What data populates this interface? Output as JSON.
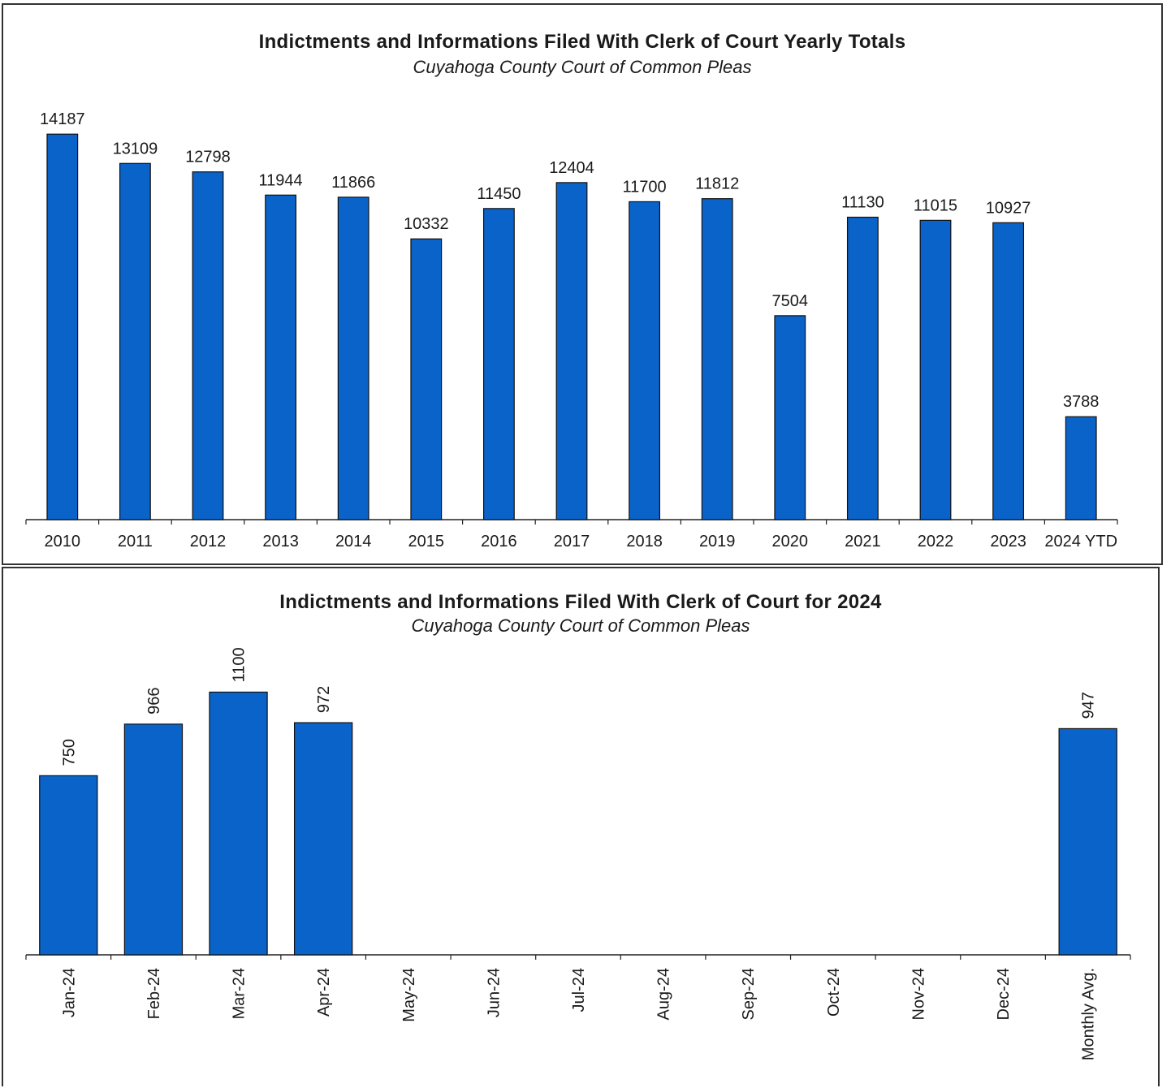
{
  "chart_data": [
    {
      "type": "bar",
      "title": "Indictments and Informations Filed With Clerk of Court Yearly Totals",
      "subtitle": "Cuyahoga County Court of Common Pleas",
      "categories": [
        "2010",
        "2011",
        "2012",
        "2013",
        "2014",
        "2015",
        "2016",
        "2017",
        "2018",
        "2019",
        "2020",
        "2021",
        "2022",
        "2023",
        "2024 YTD"
      ],
      "values": [
        14187,
        13109,
        12798,
        11944,
        11866,
        10332,
        11450,
        12404,
        11700,
        11812,
        7504,
        11130,
        11015,
        10927,
        3788
      ],
      "data_labels": [
        "14187",
        "13109",
        "12798",
        "11944",
        "11866",
        "10332",
        "11450",
        "12404",
        "11700",
        "11812",
        "7504",
        "11130",
        "11015",
        "10927",
        "3788"
      ],
      "ylim": [
        0,
        15000
      ],
      "grid": false,
      "bar_color": "#0a63c9",
      "label_orientation": "horizontal"
    },
    {
      "type": "bar",
      "title": "Indictments and Informations Filed With Clerk of Court for 2024",
      "subtitle": "Cuyahoga County Court of Common Pleas",
      "categories": [
        "Jan-24",
        "Feb-24",
        "Mar-24",
        "Apr-24",
        "May-24",
        "Jun-24",
        "Jul-24",
        "Aug-24",
        "Sep-24",
        "Oct-24",
        "Nov-24",
        "Dec-24",
        "Monthly Avg."
      ],
      "values": [
        750,
        966,
        1100,
        972,
        null,
        null,
        null,
        null,
        null,
        null,
        null,
        null,
        947
      ],
      "data_labels": [
        "750",
        "966",
        "1100",
        "972",
        "",
        "",
        "",
        "",
        "",
        "",
        "",
        "",
        "947"
      ],
      "ylim": [
        0,
        1200
      ],
      "grid": false,
      "bar_color": "#0a63c9",
      "label_orientation": "vertical"
    }
  ]
}
